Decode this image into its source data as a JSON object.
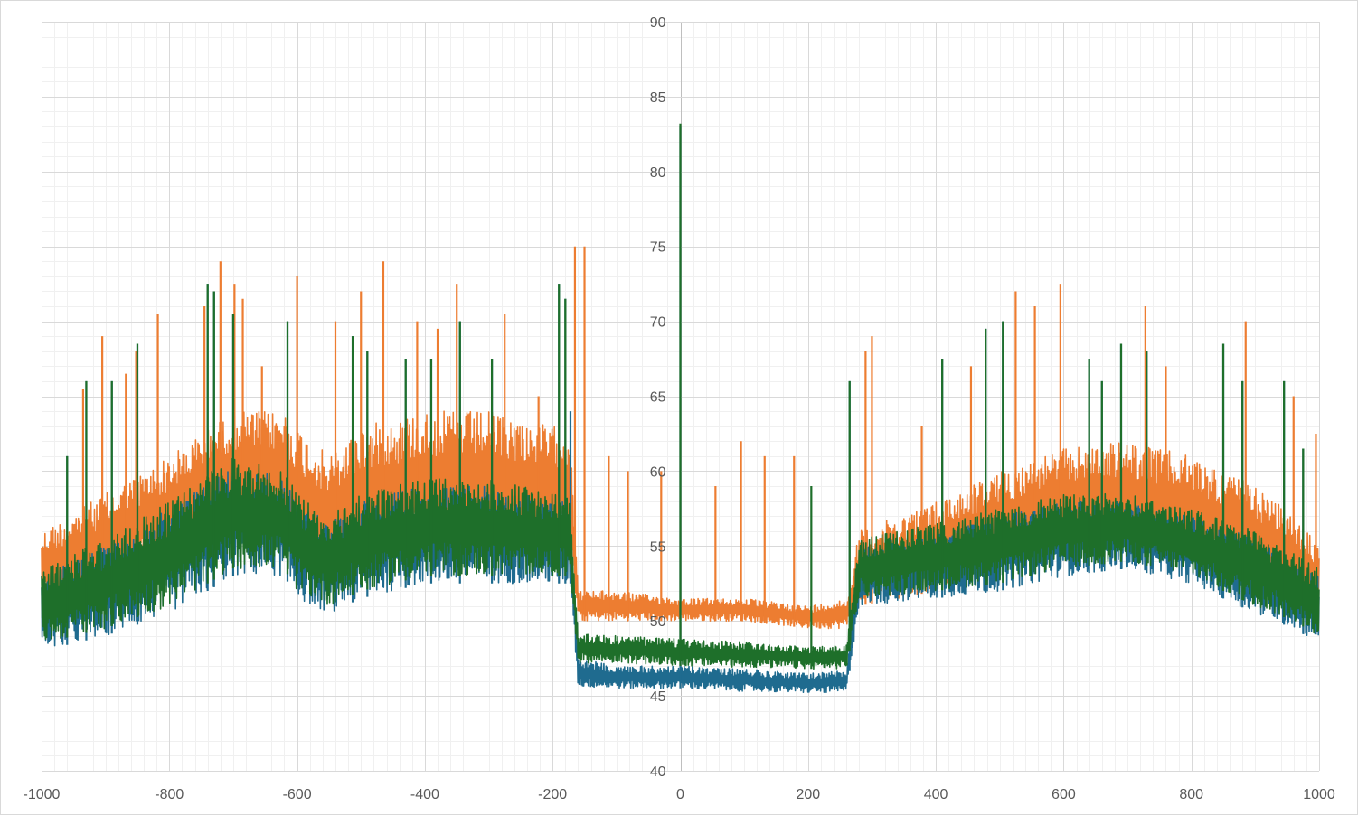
{
  "chart_data": {
    "type": "line",
    "title": "",
    "xlabel": "",
    "ylabel": "",
    "xlim": [
      -1000,
      1000
    ],
    "ylim": [
      40,
      90
    ],
    "x_major_step": 200,
    "y_major_step": 5,
    "x_minor_step": 20,
    "y_minor_step": 1,
    "grid": true,
    "legend": "none",
    "x_tick_labels": [
      "-1000",
      "-800",
      "-600",
      "-400",
      "-200",
      "0",
      "200",
      "400",
      "600",
      "800",
      "1000"
    ],
    "y_tick_labels": [
      "40",
      "45",
      "50",
      "55",
      "60",
      "65",
      "70",
      "75",
      "80",
      "85",
      "90"
    ],
    "series": [
      {
        "color": "#ed7d31",
        "envelope": {
          "x": [
            -1000,
            -900,
            -800,
            -700,
            -620,
            -600,
            -550,
            -500,
            -400,
            -300,
            -200,
            -172,
            -160,
            -100,
            0,
            100,
            200,
            260,
            280,
            400,
            500,
            600,
            700,
            800,
            900,
            960,
            1000
          ],
          "upper": [
            56,
            58.5,
            61,
            64,
            64,
            63,
            61,
            63,
            64,
            64,
            63,
            63,
            52,
            52,
            51.5,
            51.5,
            51,
            51.5,
            56,
            58,
            60,
            61.5,
            62,
            61,
            59,
            57,
            55
          ],
          "lower": [
            51,
            52,
            54,
            56.5,
            56,
            54,
            53,
            54,
            55,
            55,
            55,
            55,
            50,
            50,
            50,
            50,
            49.5,
            49.5,
            51,
            52,
            53.5,
            55,
            55,
            54,
            52.5,
            51.5,
            50.5
          ]
        },
        "spikes": [
          {
            "x": -935,
            "y": 65.5
          },
          {
            "x": -905,
            "y": 69
          },
          {
            "x": -868,
            "y": 66.5
          },
          {
            "x": -852,
            "y": 68
          },
          {
            "x": -818,
            "y": 70.5
          },
          {
            "x": -745,
            "y": 71
          },
          {
            "x": -720,
            "y": 74
          },
          {
            "x": -698,
            "y": 72.5
          },
          {
            "x": -685,
            "y": 71.5
          },
          {
            "x": -655,
            "y": 67
          },
          {
            "x": -600,
            "y": 73
          },
          {
            "x": -540,
            "y": 70
          },
          {
            "x": -500,
            "y": 72
          },
          {
            "x": -465,
            "y": 74
          },
          {
            "x": -412,
            "y": 70
          },
          {
            "x": -380,
            "y": 69.5
          },
          {
            "x": -350,
            "y": 72.5
          },
          {
            "x": -275,
            "y": 70.5
          },
          {
            "x": -222,
            "y": 65
          },
          {
            "x": -165,
            "y": 75
          },
          {
            "x": -150,
            "y": 75
          },
          {
            "x": -112,
            "y": 61
          },
          {
            "x": -82,
            "y": 60
          },
          {
            "x": -30,
            "y": 60
          },
          {
            "x": 55,
            "y": 59
          },
          {
            "x": 95,
            "y": 62
          },
          {
            "x": 132,
            "y": 61
          },
          {
            "x": 178,
            "y": 61
          },
          {
            "x": 290,
            "y": 68
          },
          {
            "x": 300,
            "y": 69
          },
          {
            "x": 378,
            "y": 63
          },
          {
            "x": 455,
            "y": 67
          },
          {
            "x": 525,
            "y": 72
          },
          {
            "x": 555,
            "y": 71
          },
          {
            "x": 595,
            "y": 72.5
          },
          {
            "x": 728,
            "y": 71
          },
          {
            "x": 760,
            "y": 67
          },
          {
            "x": 885,
            "y": 70
          },
          {
            "x": 960,
            "y": 65
          },
          {
            "x": 995,
            "y": 62.5
          }
        ]
      },
      {
        "color": "#1f6b8f",
        "envelope": {
          "x": [
            -1000,
            -900,
            -800,
            -700,
            -620,
            -600,
            -550,
            -500,
            -400,
            -300,
            -200,
            -172,
            -160,
            -100,
            0,
            100,
            200,
            260,
            280,
            400,
            500,
            600,
            700,
            800,
            900,
            960,
            1000
          ],
          "upper": [
            53,
            55,
            57.5,
            60.5,
            59.5,
            58,
            56.5,
            58,
            59,
            59,
            58,
            58,
            47.5,
            47,
            47,
            46.8,
            46.5,
            46.7,
            55,
            56,
            57,
            58,
            58,
            57,
            55.5,
            54,
            53
          ],
          "lower": [
            48,
            49,
            50.5,
            53,
            53,
            51.5,
            50.5,
            51.5,
            52.5,
            52.5,
            52.5,
            52.5,
            45.6,
            45.5,
            45.5,
            45.3,
            45.2,
            45.2,
            51,
            51.5,
            52,
            53,
            53.5,
            52.5,
            50.5,
            49.5,
            48.5
          ]
        },
        "spikes": [
          {
            "x": -960,
            "y": 61
          },
          {
            "x": -930,
            "y": 66
          },
          {
            "x": -890,
            "y": 66
          },
          {
            "x": -850,
            "y": 68.5
          },
          {
            "x": -740,
            "y": 72.5
          },
          {
            "x": -730,
            "y": 72
          },
          {
            "x": -700,
            "y": 70.5
          },
          {
            "x": -615,
            "y": 70
          },
          {
            "x": -513,
            "y": 69
          },
          {
            "x": -490,
            "y": 68
          },
          {
            "x": -430,
            "y": 67.5
          },
          {
            "x": -390,
            "y": 67.5
          },
          {
            "x": -345,
            "y": 70
          },
          {
            "x": -295,
            "y": 67.5
          },
          {
            "x": -190,
            "y": 72.5
          },
          {
            "x": -180,
            "y": 71.5
          },
          {
            "x": -172,
            "y": 64
          },
          {
            "x": 0,
            "y": 83
          },
          {
            "x": 265,
            "y": 66
          },
          {
            "x": 410,
            "y": 67.5
          },
          {
            "x": 478,
            "y": 69.5
          },
          {
            "x": 505,
            "y": 70
          },
          {
            "x": 640,
            "y": 67.5
          },
          {
            "x": 660,
            "y": 66
          },
          {
            "x": 690,
            "y": 68.5
          },
          {
            "x": 730,
            "y": 68
          },
          {
            "x": 850,
            "y": 68.5
          },
          {
            "x": 880,
            "y": 66
          },
          {
            "x": 945,
            "y": 66
          },
          {
            "x": 975,
            "y": 61.5
          }
        ]
      },
      {
        "color": "#1e6f2a",
        "envelope": {
          "x": [
            -1000,
            -900,
            -800,
            -700,
            -620,
            -600,
            -550,
            -500,
            -400,
            -300,
            -200,
            -172,
            -160,
            -100,
            0,
            100,
            200,
            260,
            280,
            400,
            500,
            600,
            700,
            800,
            900,
            960,
            1000
          ],
          "upper": [
            53.5,
            55.5,
            58,
            61,
            60,
            58.5,
            57,
            58.5,
            59.5,
            59.5,
            58.5,
            58.5,
            49.2,
            49,
            48.8,
            48.6,
            48.3,
            48.5,
            55.5,
            56.5,
            57.5,
            58.5,
            58.5,
            57.5,
            56,
            54.5,
            53.5
          ],
          "lower": [
            48.5,
            49.5,
            51,
            53.5,
            53.5,
            52,
            51,
            52,
            53,
            53,
            53,
            53,
            47.2,
            47.2,
            47,
            46.9,
            46.8,
            46.8,
            51.5,
            52,
            52.5,
            53.5,
            54,
            53,
            51,
            50,
            49
          ]
        },
        "spikes": [
          {
            "x": -960,
            "y": 61
          },
          {
            "x": -930,
            "y": 66
          },
          {
            "x": -890,
            "y": 66
          },
          {
            "x": -850,
            "y": 68.5
          },
          {
            "x": -740,
            "y": 72.5
          },
          {
            "x": -730,
            "y": 72
          },
          {
            "x": -700,
            "y": 70.5
          },
          {
            "x": -615,
            "y": 70
          },
          {
            "x": -513,
            "y": 69
          },
          {
            "x": -490,
            "y": 68
          },
          {
            "x": -430,
            "y": 67.5
          },
          {
            "x": -390,
            "y": 67.5
          },
          {
            "x": -345,
            "y": 70
          },
          {
            "x": -295,
            "y": 67.5
          },
          {
            "x": -190,
            "y": 72.5
          },
          {
            "x": -180,
            "y": 71.5
          },
          {
            "x": 0,
            "y": 83.2
          },
          {
            "x": 205,
            "y": 59
          },
          {
            "x": 265,
            "y": 66
          },
          {
            "x": 410,
            "y": 67.5
          },
          {
            "x": 478,
            "y": 69.5
          },
          {
            "x": 505,
            "y": 70
          },
          {
            "x": 640,
            "y": 67.5
          },
          {
            "x": 660,
            "y": 66
          },
          {
            "x": 690,
            "y": 68.5
          },
          {
            "x": 730,
            "y": 68
          },
          {
            "x": 850,
            "y": 68.5
          },
          {
            "x": 880,
            "y": 66
          },
          {
            "x": 945,
            "y": 66
          },
          {
            "x": 975,
            "y": 61.5
          }
        ]
      }
    ]
  }
}
